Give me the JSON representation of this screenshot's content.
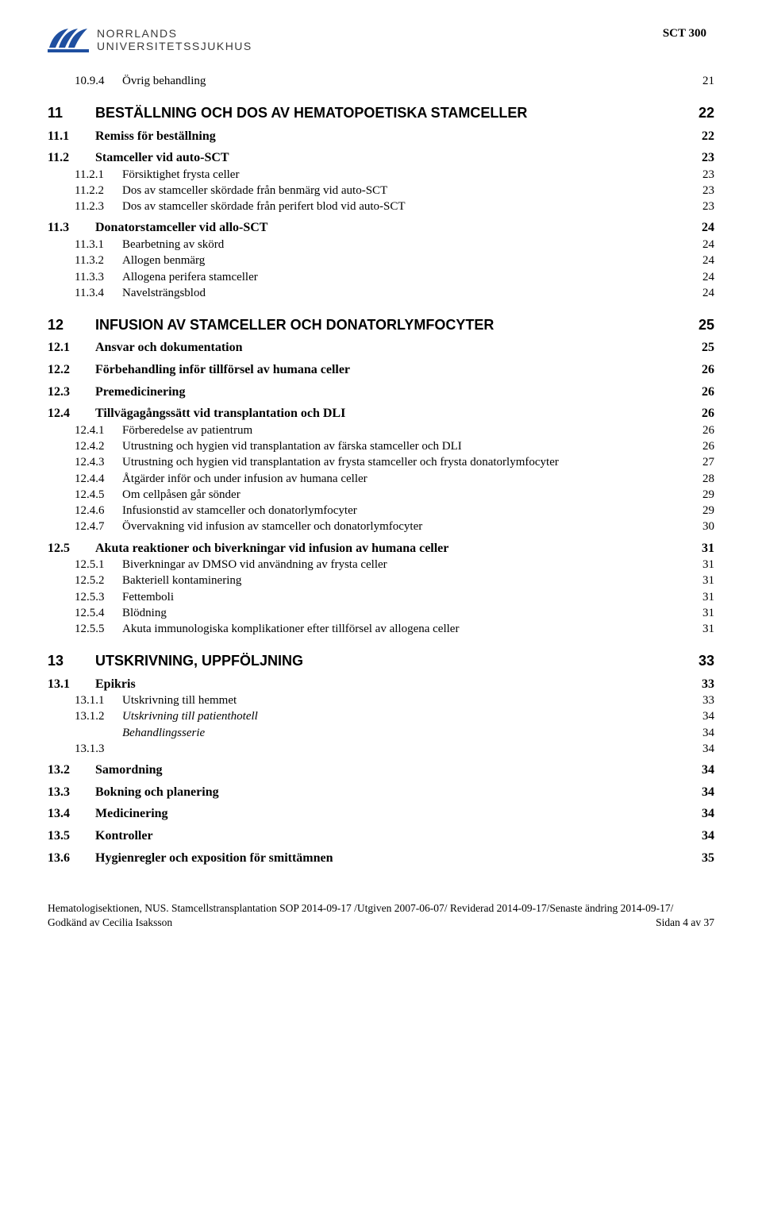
{
  "header": {
    "logo_line1": "NORRLANDS",
    "logo_line2": "UNIVERSITETSSJUKHUS",
    "doc_id": "SCT 300"
  },
  "toc": [
    {
      "level": 3,
      "num": "10.9.4",
      "title": "Övrig behandling",
      "page": "21",
      "gap_after": "m"
    },
    {
      "level": 1,
      "num": "11",
      "title": "BESTÄLLNING OCH DOS AV HEMATOPOETISKA STAMCELLER",
      "page": "22",
      "gap_after": "s"
    },
    {
      "level": 2,
      "num": "11.1",
      "title": "Remiss för beställning",
      "page": "22",
      "gap_after": "s"
    },
    {
      "level": 2,
      "num": "11.2",
      "title": "Stamceller vid auto-SCT",
      "page": "23"
    },
    {
      "level": 3,
      "num": "11.2.1",
      "title": "Försiktighet frysta celler",
      "page": "23"
    },
    {
      "level": 3,
      "num": "11.2.2",
      "title": "Dos av stamceller skördade från benmärg vid auto-SCT",
      "page": "23"
    },
    {
      "level": 3,
      "num": "11.2.3",
      "title": "Dos av stamceller skördade från perifert blod vid auto-SCT",
      "page": "23",
      "gap_after": "s"
    },
    {
      "level": 2,
      "num": "11.3",
      "title": "Donatorstamceller vid allo-SCT",
      "page": "24"
    },
    {
      "level": 3,
      "num": "11.3.1",
      "title": "Bearbetning av skörd",
      "page": "24"
    },
    {
      "level": 3,
      "num": "11.3.2",
      "title": "Allogen benmärg",
      "page": "24"
    },
    {
      "level": 3,
      "num": "11.3.3",
      "title": "Allogena perifera stamceller",
      "page": "24"
    },
    {
      "level": 3,
      "num": "11.3.4",
      "title": "Navelsträngsblod",
      "page": "24",
      "gap_after": "m"
    },
    {
      "level": 1,
      "num": "12",
      "title": "INFUSION AV STAMCELLER OCH DONATORLYMFOCYTER",
      "page": "25",
      "gap_after": "s"
    },
    {
      "level": 2,
      "num": "12.1",
      "title": "Ansvar och dokumentation",
      "page": "25",
      "gap_after": "s"
    },
    {
      "level": 2,
      "num": "12.2",
      "title": "Förbehandling inför tillförsel av humana celler",
      "page": "26",
      "gap_after": "s"
    },
    {
      "level": 2,
      "num": "12.3",
      "title": "Premedicinering",
      "page": "26",
      "gap_after": "s"
    },
    {
      "level": 2,
      "num": "12.4",
      "title": "Tillvägagångssätt vid transplantation och DLI",
      "page": "26"
    },
    {
      "level": 3,
      "num": "12.4.1",
      "title": "Förberedelse av patientrum",
      "page": "26"
    },
    {
      "level": 3,
      "num": "12.4.2",
      "title": "Utrustning och hygien vid transplantation av färska stamceller och DLI",
      "page": "26"
    },
    {
      "level": 3,
      "num": "12.4.3",
      "title": "Utrustning och hygien vid transplantation av frysta stamceller och frysta donatorlymfocyter",
      "page": "27"
    },
    {
      "level": 3,
      "num": "12.4.4",
      "title": "Åtgärder inför och under infusion av humana celler",
      "page": "28"
    },
    {
      "level": 3,
      "num": "12.4.5",
      "title": "Om cellpåsen går sönder",
      "page": "29"
    },
    {
      "level": 3,
      "num": "12.4.6",
      "title": "Infusionstid av stamceller och donatorlymfocyter",
      "page": "29"
    },
    {
      "level": 3,
      "num": "12.4.7",
      "title": "Övervakning vid infusion av stamceller och donatorlymfocyter",
      "page": "30",
      "gap_after": "s"
    },
    {
      "level": 2,
      "num": "12.5",
      "title": "Akuta reaktioner och biverkningar vid infusion av humana celler",
      "page": "31"
    },
    {
      "level": 3,
      "num": "12.5.1",
      "title": "Biverkningar av DMSO vid användning av frysta celler",
      "page": "31"
    },
    {
      "level": 3,
      "num": "12.5.2",
      "title": "Bakteriell kontaminering",
      "page": "31"
    },
    {
      "level": 3,
      "num": "12.5.3",
      "title": "Fettemboli",
      "page": "31"
    },
    {
      "level": 3,
      "num": "12.5.4",
      "title": "Blödning",
      "page": "31"
    },
    {
      "level": 3,
      "num": "12.5.5",
      "title": "Akuta immunologiska komplikationer efter tillförsel av allogena celler",
      "page": "31",
      "gap_after": "m"
    },
    {
      "level": 1,
      "num": "13",
      "title": "UTSKRIVNING, UPPFÖLJNING",
      "page": "33",
      "gap_after": "s"
    },
    {
      "level": 2,
      "num": "13.1",
      "title": "Epikris",
      "page": "33"
    },
    {
      "level": 3,
      "num": "13.1.1",
      "title": "Utskrivning till hemmet",
      "page": "33"
    },
    {
      "level": 3,
      "num": "13.1.2",
      "title": "Utskrivning till patienthotell",
      "page": "34",
      "italic": true
    },
    {
      "level": 3,
      "num": "",
      "title": "Behandlingsserie",
      "page": "34",
      "italic": true
    },
    {
      "level": 3,
      "num": "13.1.3",
      "title": "",
      "page": "34",
      "gap_after": "s"
    },
    {
      "level": 2,
      "num": "13.2",
      "title": "Samordning",
      "page": "34",
      "gap_after": "s"
    },
    {
      "level": 2,
      "num": "13.3",
      "title": "Bokning och planering",
      "page": "34",
      "gap_after": "s"
    },
    {
      "level": 2,
      "num": "13.4",
      "title": "Medicinering",
      "page": "34",
      "gap_after": "s"
    },
    {
      "level": 2,
      "num": "13.5",
      "title": "Kontroller",
      "page": "34",
      "gap_after": "s"
    },
    {
      "level": 2,
      "num": "13.6",
      "title": "Hygienregler och exposition för smittämnen",
      "page": "35"
    }
  ],
  "footer": {
    "line1": "Hematologisektionen, NUS. Stamcellstransplantation SOP 2014-09-17 /Utgiven 2007-06-07/ Reviderad 2014-09-17/Senaste ändring 2014-09-17/",
    "line2_left": "Godkänd av Cecilia Isaksson",
    "line2_right": "Sidan 4 av 37"
  },
  "colors": {
    "logo_blue": "#1f4fa0",
    "text": "#000000",
    "bg": "#ffffff"
  }
}
